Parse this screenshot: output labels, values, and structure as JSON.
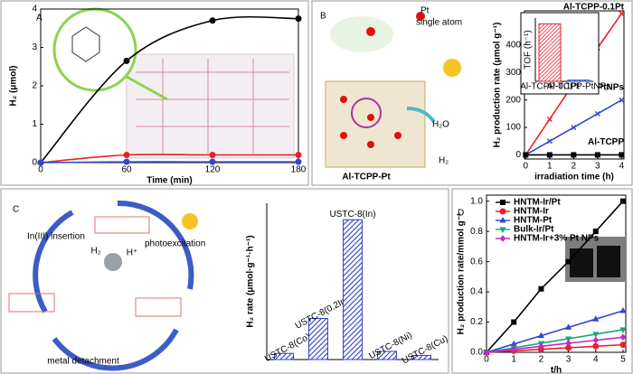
{
  "chart_data": [
    {
      "type": "line",
      "label": "A",
      "xlabel": "Time (min)",
      "ylabel": "H₂ (μmol)",
      "smooth": true,
      "x": [
        0,
        60,
        120,
        180
      ],
      "xlim": [
        0,
        180
      ],
      "ylim": [
        0,
        4
      ],
      "xticks": [
        0,
        60,
        120,
        180
      ],
      "yticks": [
        0,
        1,
        2,
        3,
        4
      ],
      "series": [
        {
          "color": "#000000",
          "marker": "circle",
          "values": [
            0,
            2.65,
            3.7,
            3.75
          ]
        },
        {
          "color": "#e8202a",
          "marker": "circle",
          "values": [
            0,
            0.2,
            0.2,
            0.2
          ]
        },
        {
          "color": "#2f49c8",
          "marker": "circle",
          "values": [
            0,
            0.02,
            0.02,
            0.02
          ]
        }
      ]
    },
    {
      "type": "line",
      "label": "B",
      "xlabel": "irradiation time (h)",
      "ylabel": "H₂ production rate (μmol g⁻¹)",
      "x": [
        0,
        1,
        2,
        3,
        4
      ],
      "xlim": [
        -0.05,
        4.1
      ],
      "ylim": [
        -15,
        525
      ],
      "xticks": [
        0,
        1,
        2,
        3,
        4
      ],
      "yticks": [
        0,
        100,
        200,
        300,
        400
      ],
      "series": [
        {
          "name": "Al-TCPP-0.1Pt",
          "color": "#e8202a",
          "marker": "cross",
          "values": [
            0,
            130,
            260,
            390,
            515
          ]
        },
        {
          "name": "Al-TCPP-PtNPs",
          "color": "#2f49c8",
          "marker": "cross",
          "values": [
            0,
            50,
            100,
            150,
            200
          ]
        },
        {
          "name": "Al-TCPP",
          "color": "#000000",
          "marker": "square",
          "values": [
            0,
            0,
            0,
            0,
            0
          ]
        }
      ],
      "annotations": [
        "Pt",
        "single atom",
        "H₂O",
        "H₂",
        "Al-TCPP-Pt"
      ]
    },
    {
      "type": "bar",
      "ylabel": "TOF (h⁻¹)",
      "categories": [
        "Al-TCPP-0.1Pt",
        "Al-TCPP-PtNPs"
      ],
      "values": [
        100,
        2
      ],
      "ylim": [
        0,
        110
      ],
      "colors": [
        "#e8202a",
        "#2f49c8"
      ],
      "hatch": true
    },
    {
      "type": "bar",
      "label": "C",
      "ylabel": "H₂ rate (μmol·g⁻¹·h⁻¹)",
      "categories": [
        "USTC-8(Co)",
        "USTC-8(0.2In)",
        "USTC-8(In)",
        "USTC-8(Ni)",
        "USTC-8(Cu)"
      ],
      "values": [
        15,
        100,
        340,
        20,
        10
      ],
      "ylim": [
        0,
        380
      ],
      "colors": [
        "#2f3fbf",
        "#2f3fbf",
        "#2f3fbf",
        "#2f3fbf",
        "#2f3fbf"
      ],
      "hatch": true,
      "annotations": [
        "In(III) insertion",
        "photoexcitation",
        "metal detachment",
        "H₂",
        "H⁺"
      ]
    },
    {
      "type": "line",
      "label": "D",
      "xlabel": "t/h",
      "ylabel": "H₂ production rate/mmol g⁻¹",
      "x": [
        0,
        1,
        2,
        3,
        4,
        5
      ],
      "xlim": [
        0,
        5.1
      ],
      "ylim": [
        0,
        1.04
      ],
      "xticks": [
        0,
        1,
        2,
        3,
        4,
        5
      ],
      "yticks": [
        {
          "value": 0,
          "label": "0.0"
        },
        0.2,
        0.4,
        0.6,
        0.8,
        {
          "value": 1,
          "label": "1.0"
        }
      ],
      "legend": "upper left",
      "series": [
        {
          "name": "HNTM-Ir/Pt",
          "color": "#000000",
          "marker": "square",
          "values": [
            0,
            0.2,
            0.42,
            0.6,
            0.8,
            1.0
          ]
        },
        {
          "name": "HNTM-Ir",
          "color": "#e8202a",
          "marker": "circle",
          "values": [
            0,
            0.01,
            0.02,
            0.03,
            0.04,
            0.05
          ]
        },
        {
          "name": "HNTM-Pt",
          "color": "#2f49c8",
          "marker": "triangle",
          "values": [
            0,
            0.055,
            0.11,
            0.165,
            0.22,
            0.275
          ]
        },
        {
          "name": "Bulk-Ir/Pt",
          "color": "#1fa37a",
          "marker": "tridown",
          "values": [
            0,
            0.03,
            0.06,
            0.09,
            0.12,
            0.15
          ]
        },
        {
          "name": "HNTM-Ir+3% Pt NPs",
          "color": "#c228c8",
          "marker": "diamond",
          "values": [
            0,
            0.02,
            0.04,
            0.06,
            0.08,
            0.1
          ]
        }
      ]
    }
  ]
}
